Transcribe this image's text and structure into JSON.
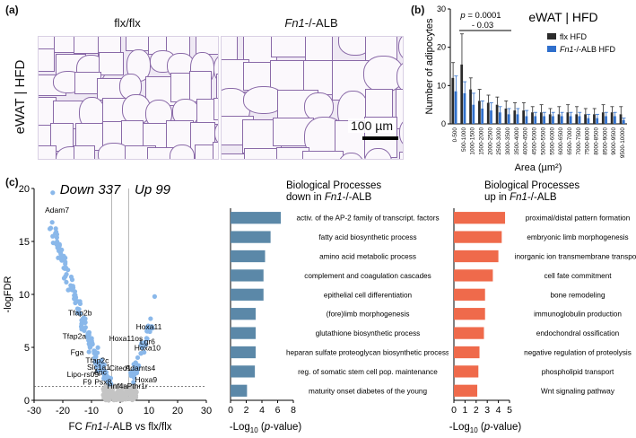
{
  "panel_labels": {
    "a": "(a)",
    "b": "(b)",
    "c": "(c)"
  },
  "panel_a": {
    "side_label": "eWAT | HFD",
    "left_title": "flx/flx",
    "right_title_italic": "Fn1",
    "right_title_suffix": "-/-ALB",
    "scale_bar_label": "100 µm"
  },
  "colors": {
    "flx": "#2b2b2b",
    "ko": "#2f6fcc",
    "down_dots": "#8ab8ea",
    "ns_dots": "#c4c4c4",
    "down_bars": "#5b88a8",
    "up_bars": "#ef6a4b"
  },
  "chart_data": [
    {
      "id": "histogram",
      "type": "bar",
      "title": "eWAT | HFD",
      "xlabel": "Area (µm²)",
      "ylabel": "Number of adipocytes",
      "ylim": [
        0,
        30
      ],
      "yticks": [
        "0",
        "10",
        "20",
        "30"
      ],
      "annotation": {
        "line1": "p = 0.0001",
        "line2": "- 0.03"
      },
      "legend": [
        "flx HFD",
        "Fn1-/-ALB HFD"
      ],
      "categories": [
        "0-500",
        "500-1000",
        "1000-1500",
        "1500-2000",
        "2000-2500",
        "2500-3000",
        "3000-3500",
        "3500-4000",
        "4000-4500",
        "4500-5000",
        "5000-5500",
        "5500-6000",
        "6000-6500",
        "6500-7000",
        "7000-7500",
        "7500-8000",
        "8000-8500",
        "8500-9000",
        "9000-9500",
        "9500-10000"
      ],
      "series": [
        {
          "name": "flx HFD",
          "values": [
            12,
            15.5,
            9,
            6,
            5.5,
            5,
            4,
            3.5,
            3.5,
            3,
            3,
            2.5,
            2.5,
            3,
            2.5,
            2.5,
            2.5,
            3,
            3,
            2.5
          ],
          "errors": [
            4,
            8,
            3,
            3,
            2,
            2,
            2,
            2,
            2,
            1.5,
            2,
            1.5,
            2,
            2,
            2,
            1.5,
            1.5,
            2,
            1.5,
            2
          ]
        },
        {
          "name": "Fn1-/-ALB HFD",
          "values": [
            8.5,
            8,
            5,
            4,
            3.5,
            3,
            2.5,
            2.5,
            2,
            2,
            2,
            2,
            2,
            2,
            2,
            1.5,
            1.5,
            2,
            2,
            1
          ],
          "errors": [
            4,
            3,
            3,
            2,
            2,
            1.5,
            1.5,
            1.5,
            1.5,
            1,
            1,
            1,
            1,
            1,
            1,
            1,
            1,
            1,
            1,
            0.5
          ]
        }
      ]
    },
    {
      "id": "volcano",
      "type": "scatter",
      "xlabel_prefix": "FC ",
      "xlabel_italic": "Fn1",
      "xlabel_suffix": "-/-ALB vs flx/flx",
      "ylabel": "-logFDR",
      "xlim": [
        -30,
        30
      ],
      "ylim": [
        0,
        20
      ],
      "xticks": [
        "-30",
        "-20",
        "-10",
        "0",
        "10",
        "20",
        "30"
      ],
      "yticks": [
        "0",
        "5",
        "10",
        "15",
        "20"
      ],
      "down_label": "Down 337",
      "up_label": "Up 99",
      "gene_labels": [
        {
          "name": "Adam7",
          "x": -22,
          "y": 17.7
        },
        {
          "name": "Tfap2b",
          "x": -14,
          "y": 8
        },
        {
          "name": "Tfap2a",
          "x": -16,
          "y": 5.8
        },
        {
          "name": "Fga",
          "x": -15,
          "y": 4.3
        },
        {
          "name": "Tfap2c",
          "x": -8,
          "y": 3.5
        },
        {
          "name": "Slc1a1",
          "x": -7.5,
          "y": 2.9
        },
        {
          "name": "Apc",
          "x": -7,
          "y": 2.4
        },
        {
          "name": "Lipo-rs09",
          "x": -13,
          "y": 2.2
        },
        {
          "name": "F9",
          "x": -11.5,
          "y": 1.5
        },
        {
          "name": "Psx8",
          "x": -6,
          "y": 1.5
        },
        {
          "name": "Hoxa11",
          "x": 10,
          "y": 6.7
        },
        {
          "name": "Hoxa11os",
          "x": 2,
          "y": 5.6
        },
        {
          "name": "Lgr6",
          "x": 9.5,
          "y": 5.3
        },
        {
          "name": "Hoxa10",
          "x": 9.5,
          "y": 4.7
        },
        {
          "name": "Cited1",
          "x": 0,
          "y": 2.8
        },
        {
          "name": "Adamts4",
          "x": 7,
          "y": 2.8
        },
        {
          "name": "Hoxa9",
          "x": 9,
          "y": 1.7
        },
        {
          "name": "Hnf4a",
          "x": -1,
          "y": 1.1
        },
        {
          "name": "Pthr1r",
          "x": 6,
          "y": 1.1
        }
      ]
    },
    {
      "id": "bp_down",
      "type": "bar",
      "orientation": "horizontal",
      "title_line1": "Biological Processes",
      "title_line2_prefix": "down  in ",
      "title_line2_italic": "Fn1",
      "title_line2_suffix": "-/-ALB",
      "xlabel_prefix": "-Log",
      "xlabel_sub": "10",
      "xlabel_mid": " (",
      "xlabel_italic": "p",
      "xlabel_suffix": "-value)",
      "xlim": [
        0,
        8
      ],
      "xticks": [
        "0",
        "2",
        "4",
        "6",
        "8"
      ],
      "categories": [
        "activ. of the AP-2 family of transcript. factors",
        "fatty acid biosynthetic process",
        "amino acid metabolic process",
        "complement and coagulation cascades",
        "epithelial cell differentiation",
        "(fore)limb morphogenesis",
        "glutathione biosynthetic process",
        "heparan sulfate proteoglycan biosynthetic process",
        "reg. of somatic stem cell pop. maintenance",
        "maturity onset diabetes of the young"
      ],
      "values": [
        6.4,
        5.1,
        4.4,
        4.2,
        4.2,
        3.2,
        3.2,
        3.2,
        3.1,
        2.1
      ]
    },
    {
      "id": "bp_up",
      "type": "bar",
      "orientation": "horizontal",
      "title_line1": "Biological Processes",
      "title_line2_prefix": "up in ",
      "title_line2_italic": "Fn1",
      "title_line2_suffix": "-/-ALB",
      "xlabel_prefix": "-Log",
      "xlabel_sub": "10",
      "xlabel_mid": " (",
      "xlabel_italic": "p",
      "xlabel_suffix": "-value)",
      "xlim": [
        0,
        5
      ],
      "xticks": [
        "0",
        "1",
        "2",
        "3",
        "4",
        "5"
      ],
      "categories": [
        "proximal/distal pattern formation",
        "embryonic limb morphogenesis",
        "inorganic ion transmembrane transport",
        "cell fate commitment",
        "bone remodeling",
        "immunoglobulin production",
        "endochondral ossification",
        "negative regulation of proteolysis",
        "phospholipid transport",
        "Wnt signaling pathway"
      ],
      "values": [
        4.6,
        4.3,
        4.0,
        3.5,
        2.8,
        2.8,
        2.7,
        2.3,
        2.2,
        2.1
      ]
    }
  ]
}
